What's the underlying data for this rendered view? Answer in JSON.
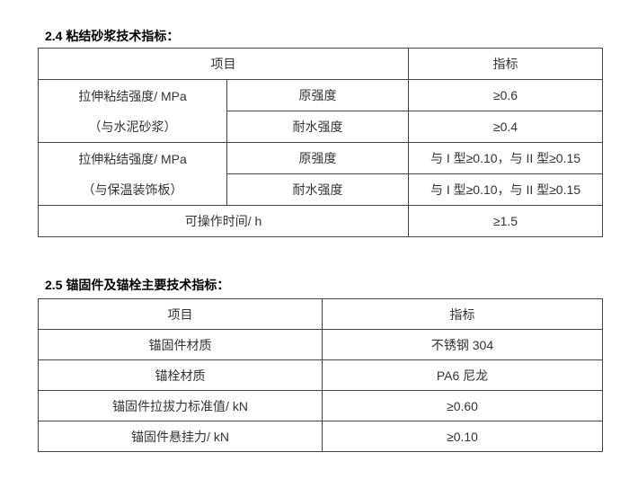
{
  "section1": {
    "title": "2.4  粘结砂浆技术指标：",
    "header": {
      "item": "项目",
      "value": "指标"
    },
    "groups": [
      {
        "label_line1": "拉伸粘结强度/ MPa",
        "label_line2": "（与水泥砂浆）",
        "rows": [
          {
            "sub": "原强度",
            "value": "≥0.6"
          },
          {
            "sub": "耐水强度",
            "value": "≥0.4"
          }
        ]
      },
      {
        "label_line1": "拉伸粘结强度/ MPa",
        "label_line2": "（与保温装饰板）",
        "rows": [
          {
            "sub": "原强度",
            "value": "与 I 型≥0.10，与 II 型≥0.15"
          },
          {
            "sub": "耐水强度",
            "value": "与 I 型≥0.10，与 II 型≥0.15"
          }
        ]
      }
    ],
    "last_row": {
      "item": "可操作时间/ h",
      "value": "≥1.5"
    }
  },
  "section2": {
    "title": "2.5 锚固件及锚栓主要技术指标：",
    "header": {
      "item": "项目",
      "value": "指标"
    },
    "rows": [
      {
        "item": "锚固件材质",
        "value": "不锈钢 304"
      },
      {
        "item": "锚栓材质",
        "value": "PA6 尼龙"
      },
      {
        "item": "锚固件拉拔力标准值/ kN",
        "value": "≥0.60"
      },
      {
        "item": "锚固件悬挂力/ kN",
        "value": "≥0.10"
      }
    ]
  }
}
